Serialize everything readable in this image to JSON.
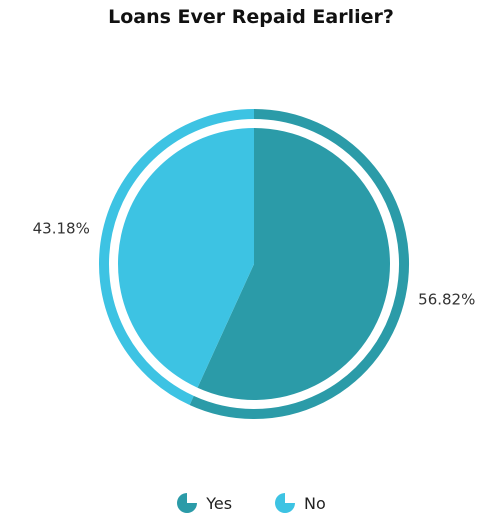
{
  "chart_data": {
    "type": "pie",
    "title": "Loans Ever Repaid Earlier?",
    "categories": [
      "Yes",
      "No"
    ],
    "values": [
      56.82,
      43.18
    ],
    "value_labels": [
      "56.82%",
      "43.18%"
    ],
    "colors": [
      "#2B9BA8",
      "#3DC3E3"
    ],
    "legend_position": "bottom"
  }
}
